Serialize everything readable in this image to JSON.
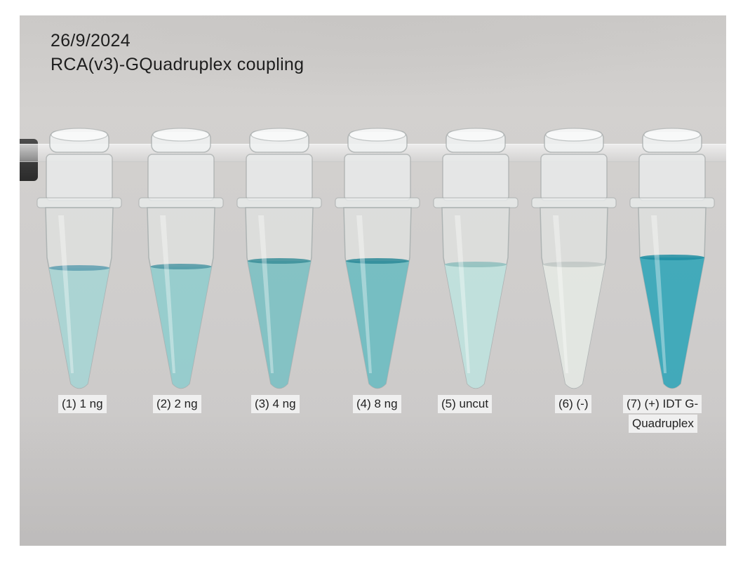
{
  "header": {
    "date": "26/9/2024",
    "title": "RCA(v3)-GQuadruplex coupling"
  },
  "tubes": [
    {
      "label": "(1) 1 ng",
      "label2": "",
      "liquid_color": "#a9d3d3",
      "liquid_top_color": "#5f9fb0"
    },
    {
      "label": "(2) 2 ng",
      "label2": "",
      "liquid_color": "#94cbcc",
      "liquid_top_color": "#4f98a5"
    },
    {
      "label": "(3) 4 ng",
      "label2": "",
      "liquid_color": "#7fc0c3",
      "liquid_top_color": "#3a8e99"
    },
    {
      "label": "(4) 8 ng",
      "label2": "",
      "liquid_color": "#71bcc1",
      "liquid_top_color": "#2c8a98"
    },
    {
      "label": "(5) uncut",
      "label2": "",
      "liquid_color": "#bfdfdc",
      "liquid_top_color": "#8fbebd"
    },
    {
      "label": "(6) (-)",
      "label2": "",
      "liquid_color": "#e3e6e2",
      "liquid_top_color": "#bfc7c4"
    },
    {
      "label": "(7) (+) IDT G-",
      "label2": "Quadruplex",
      "liquid_color": "#3aa7b8",
      "liquid_top_color": "#1f8ea2"
    }
  ]
}
